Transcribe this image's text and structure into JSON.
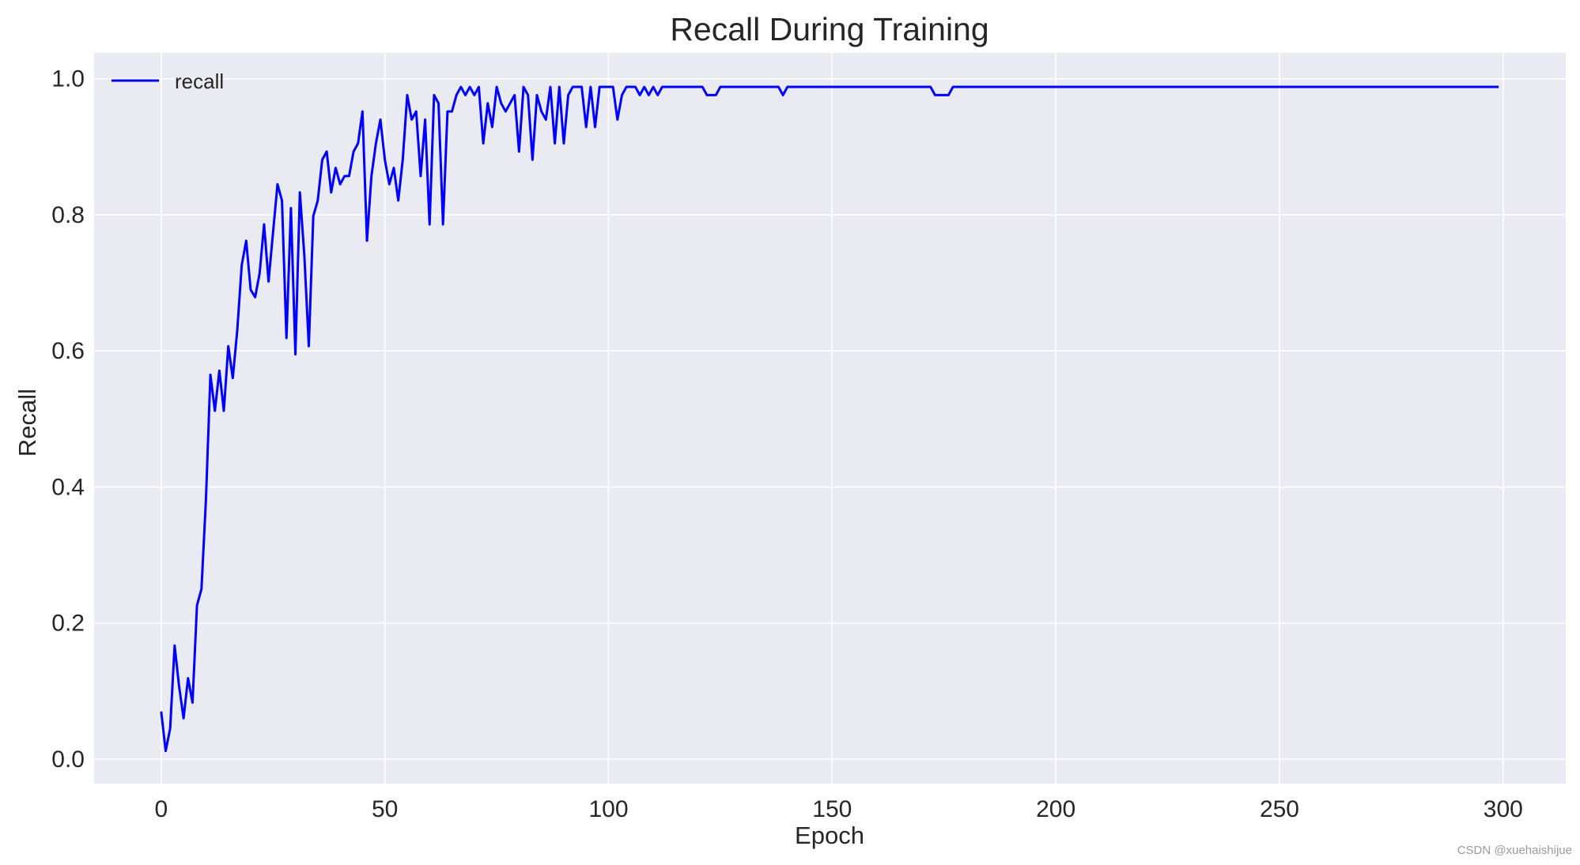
{
  "chart_data": {
    "type": "line",
    "title": "Recall During Training",
    "xlabel": "Epoch",
    "ylabel": "Recall",
    "xlim": [
      -15,
      314
    ],
    "ylim": [
      -0.036,
      1.038
    ],
    "xticks": [
      0,
      50,
      100,
      150,
      200,
      250,
      300
    ],
    "yticks": [
      0.0,
      0.2,
      0.4,
      0.6,
      0.8,
      1.0
    ],
    "xtick_labels": [
      "0",
      "50",
      "100",
      "150",
      "200",
      "250",
      "300"
    ],
    "ytick_labels": [
      "0.0",
      "0.2",
      "0.4",
      "0.6",
      "0.8",
      "1.0"
    ],
    "grid": true,
    "legend_position": "top-left",
    "background_color": "#eaeaf2",
    "grid_color": "#ffffff",
    "series": [
      {
        "name": "recall",
        "color": "#0000ff",
        "x": [
          0,
          1,
          2,
          3,
          4,
          5,
          6,
          7,
          8,
          9,
          10,
          11,
          12,
          13,
          14,
          15,
          16,
          17,
          18,
          19,
          20,
          21,
          22,
          23,
          24,
          25,
          26,
          27,
          28,
          29,
          30,
          31,
          32,
          33,
          34,
          35,
          36,
          37,
          38,
          39,
          40,
          41,
          42,
          43,
          44,
          45,
          46,
          47,
          48,
          49,
          50,
          51,
          52,
          53,
          54,
          55,
          56,
          57,
          58,
          59,
          60,
          61,
          62,
          63,
          64,
          65,
          66,
          67,
          68,
          69,
          70,
          71,
          72,
          73,
          74,
          75,
          76,
          77,
          78,
          79,
          80,
          81,
          82,
          83,
          84,
          85,
          86,
          87,
          88,
          89,
          90,
          91,
          92,
          93,
          94,
          95,
          96,
          97,
          98,
          99,
          100,
          101,
          102,
          103,
          104,
          105,
          106,
          107,
          108,
          109,
          110,
          111,
          112,
          113,
          120,
          121,
          122,
          123,
          124,
          125,
          126,
          127,
          137,
          138,
          139,
          140,
          141,
          142,
          150,
          160,
          170,
          172,
          173,
          174,
          175,
          176,
          177,
          178,
          179,
          180,
          200,
          250,
          299
        ],
        "values": [
          0.07,
          0.012,
          0.045,
          0.167,
          0.107,
          0.06,
          0.119,
          0.083,
          0.226,
          0.25,
          0.381,
          0.565,
          0.512,
          0.571,
          0.512,
          0.607,
          0.56,
          0.63,
          0.726,
          0.762,
          0.69,
          0.679,
          0.714,
          0.786,
          0.702,
          0.774,
          0.845,
          0.821,
          0.619,
          0.81,
          0.595,
          0.833,
          0.74,
          0.607,
          0.798,
          0.821,
          0.881,
          0.893,
          0.833,
          0.869,
          0.845,
          0.857,
          0.857,
          0.893,
          0.905,
          0.952,
          0.762,
          0.857,
          0.905,
          0.94,
          0.881,
          0.845,
          0.869,
          0.821,
          0.881,
          0.976,
          0.94,
          0.952,
          0.857,
          0.94,
          0.786,
          0.976,
          0.964,
          0.786,
          0.952,
          0.952,
          0.976,
          0.988,
          0.976,
          0.988,
          0.976,
          0.988,
          0.905,
          0.964,
          0.929,
          0.988,
          0.964,
          0.952,
          0.964,
          0.976,
          0.893,
          0.988,
          0.976,
          0.881,
          0.976,
          0.952,
          0.94,
          0.988,
          0.905,
          0.988,
          0.905,
          0.976,
          0.988,
          0.988,
          0.988,
          0.929,
          0.988,
          0.929,
          0.988,
          0.988,
          0.988,
          0.988,
          0.94,
          0.976,
          0.988,
          0.988,
          0.988,
          0.976,
          0.988,
          0.976,
          0.988,
          0.976,
          0.988,
          0.988,
          0.988,
          0.988,
          0.976,
          0.976,
          0.976,
          0.988,
          0.988,
          0.988,
          0.988,
          0.988,
          0.976,
          0.988,
          0.988,
          0.988,
          0.988,
          0.988,
          0.988,
          0.988,
          0.976,
          0.976,
          0.976,
          0.976,
          0.988,
          0.988,
          0.988,
          0.988,
          0.988,
          0.988,
          0.988
        ]
      }
    ]
  },
  "watermark": "CSDN @xuehaishijue"
}
